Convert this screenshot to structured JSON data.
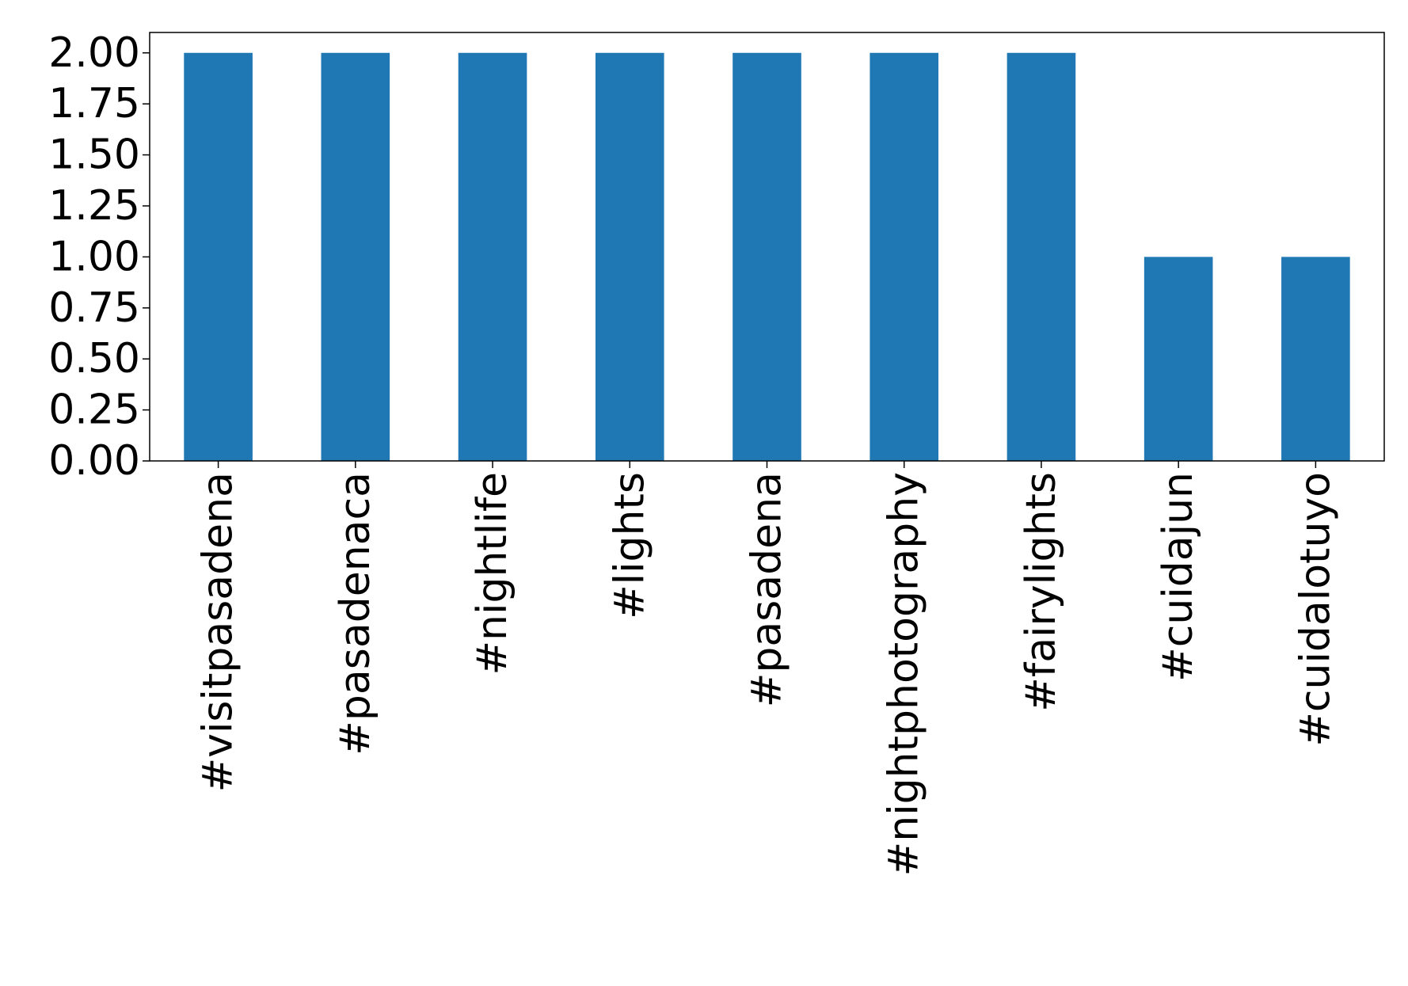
{
  "chart_data": {
    "type": "bar",
    "categories": [
      "#visitpasadena",
      "#pasadenaca",
      "#nightlife",
      "#lights",
      "#pasadena",
      "#nightphotography",
      "#fairylights",
      "#cuidajun",
      "#cuidalotuyo"
    ],
    "values": [
      2,
      2,
      2,
      2,
      2,
      2,
      2,
      1,
      1
    ],
    "color": "#1f77b4",
    "ylim": [
      0,
      2.1
    ],
    "yticks": [
      {
        "value": 0,
        "label": "0.00"
      },
      {
        "value": 0.25,
        "label": "0.25"
      },
      {
        "value": 0.5,
        "label": "0.50"
      },
      {
        "value": 0.75,
        "label": "0.75"
      },
      {
        "value": 1,
        "label": "1.00"
      },
      {
        "value": 1.25,
        "label": "1.25"
      },
      {
        "value": 1.5,
        "label": "1.50"
      },
      {
        "value": 1.75,
        "label": "1.75"
      },
      {
        "value": 2,
        "label": "2.00"
      }
    ]
  }
}
